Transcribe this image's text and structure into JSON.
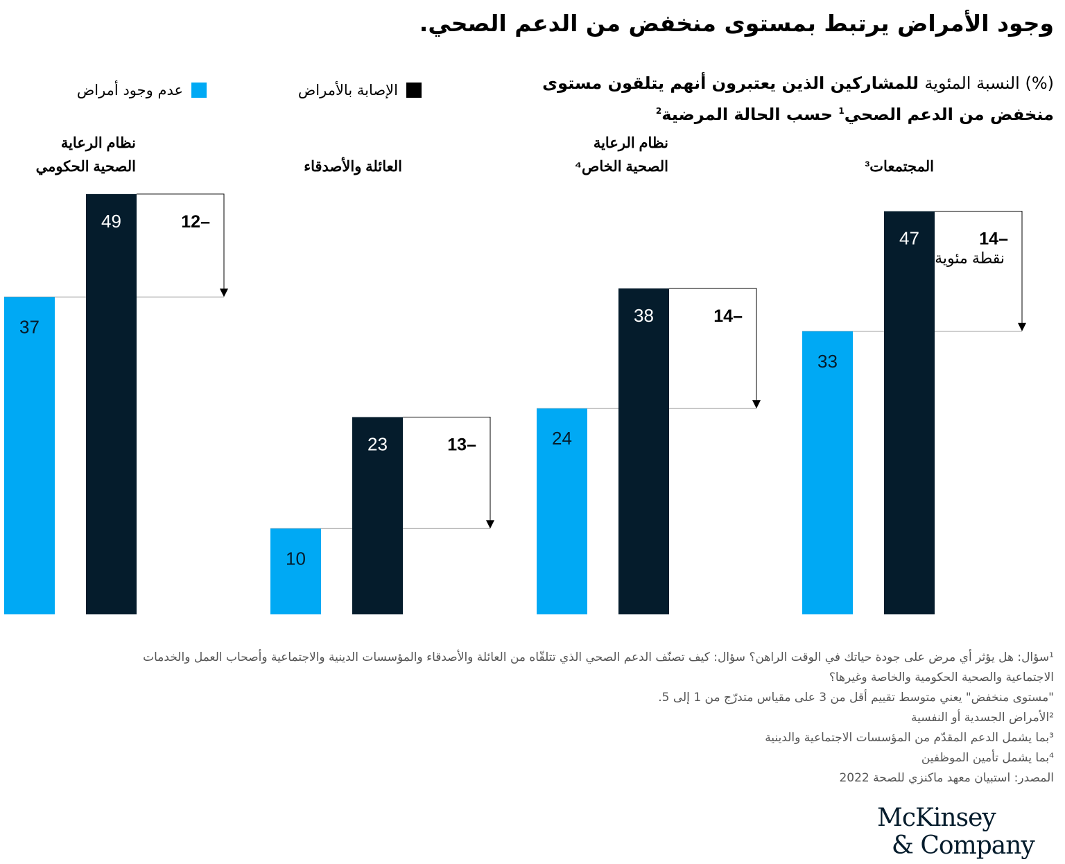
{
  "title": "وجود الأمراض يرتبط بمستوى منخفض من الدعم الصحي.",
  "subtitle": {
    "unit": "(%) النسبة المئوية",
    "main": "للمشاركين الذين يعتبرون أنهم يتلقون مستوى منخفض من الدعم الصحي",
    "sup1": "1",
    "tail": "حسب الحالة المرضية",
    "sup2": "2"
  },
  "colors": {
    "no_disease": "#00a9f4",
    "disease": "#051c2c"
  },
  "chart_data": {
    "type": "bar",
    "categories": [
      "المجتمعات³",
      "نظام الرعاية الصحية الخاص⁴",
      "العائلة والأصدقاء",
      "نظام الرعاية الصحية الحكومي"
    ],
    "category_lines": [
      [
        "المجتمعات³"
      ],
      [
        "نظام الرعاية",
        "الصحية الخاص⁴"
      ],
      [
        "العائلة والأصدقاء"
      ],
      [
        "نظام الرعاية",
        "الصحية الحكومي"
      ]
    ],
    "series": [
      {
        "name": "عدم وجود أمراض",
        "values": [
          33,
          24,
          10,
          37
        ]
      },
      {
        "name": "الإصابة بالأمراض",
        "values": [
          47,
          38,
          23,
          49
        ]
      }
    ],
    "differences": [
      "14–",
      "14–",
      "13–",
      "12–"
    ],
    "difference_unit": "نقطة مئوية",
    "ylim": [
      0,
      50
    ],
    "legend": "top-left"
  },
  "notes": [
    "¹سؤال: هل يؤثر أي مرض على جودة حياتك في الوقت الراهن؟ سؤال: كيف تصنّف الدعم الصحي الذي تتلقّاه من العائلة والأصدقاء والمؤسسات الدينية والاجتماعية وأصحاب العمل والخدمات",
    "الاجتماعية والصحية الحكومية والخاصة وغيرها؟",
    "\"مستوى منخفض\" يعني متوسط تقييم أقل من 3 على مقياس متدرّج من 1 إلى 5.",
    "²الأمراض الجسدية أو النفسية",
    "³بما يشمل الدعم المقدّم من المؤسسات الاجتماعية والدينية",
    "⁴بما يشمل تأمين الموظفين",
    "المصدر: استبيان معهد ماكنزي للصحة 2022"
  ],
  "logo": "McKinsey & Company"
}
